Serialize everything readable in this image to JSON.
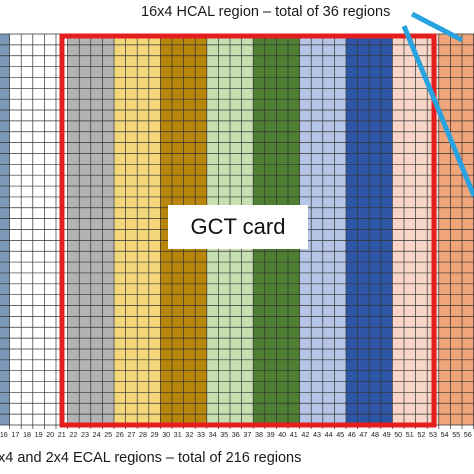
{
  "annotations": {
    "top_note": "16x4 HCAL region – total of 36 regions",
    "bottom_note": "x4 and 2x4 ECAL regions – total of 216 regions",
    "card_label": "GCT card"
  },
  "grid": {
    "column_numbers": [
      "16",
      "17",
      "18",
      "19",
      "20",
      "21",
      "22",
      "23",
      "24",
      "25",
      "26",
      "27",
      "28",
      "29",
      "30",
      "31",
      "32",
      "33",
      "34",
      "35",
      "36",
      "37",
      "38",
      "39",
      "40",
      "41",
      "42",
      "43",
      "44",
      "45",
      "46",
      "47",
      "48",
      "49",
      "50",
      "51",
      "52",
      "53",
      "54",
      "55",
      "56"
    ],
    "bands": [
      {
        "color": "#7b98b8"
      },
      {
        "color": "#ffffff"
      },
      {
        "color": "#ffffff"
      },
      {
        "color": "#b3b3b3"
      },
      {
        "color": "#f3d77a"
      },
      {
        "color": "#b8860b"
      },
      {
        "color": "#c6dfb0"
      },
      {
        "color": "#4f7f33"
      },
      {
        "color": "#b4c5e6"
      },
      {
        "color": "#2e56a6"
      },
      {
        "color": "#f7d6c8"
      },
      {
        "color": "#f0a47a"
      }
    ]
  },
  "colors": {
    "card_outline": "#e41e1e",
    "pointer": "#29a3e0",
    "grid_line": "#333333"
  }
}
